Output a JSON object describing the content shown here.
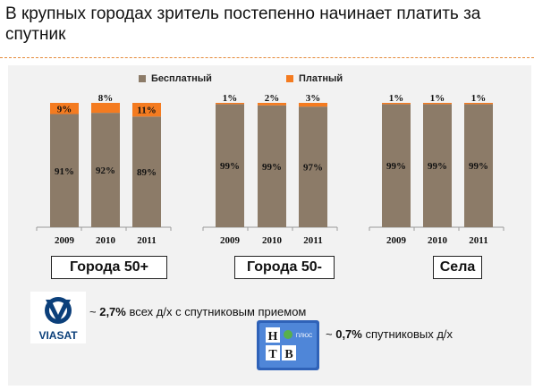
{
  "title": "В крупных городах зритель постепенно начинает платить за спутник",
  "colors": {
    "free": "#8c7b68",
    "paid": "#f47b20",
    "rule": "#e58a3a",
    "panel": "#f2f2f2"
  },
  "legend": {
    "free": "Бесплатный",
    "paid": "Платный"
  },
  "chart_data": {
    "type": "bar",
    "stacked": true,
    "percent": true,
    "ylim": [
      0,
      100
    ],
    "groups": [
      {
        "name": "Города 50+",
        "years": [
          "2009",
          "2010",
          "2011"
        ],
        "free": [
          91,
          92,
          89
        ],
        "paid": [
          9,
          8,
          11
        ],
        "free_labels": [
          "91%",
          "92%",
          "89%"
        ],
        "paid_labels": [
          "9%",
          "8%",
          "11%"
        ]
      },
      {
        "name": "Города 50-",
        "years": [
          "2009",
          "2010",
          "2011"
        ],
        "free": [
          99,
          99,
          97
        ],
        "paid": [
          1,
          2,
          3
        ],
        "free_labels": [
          "99%",
          "99%",
          "97%"
        ],
        "paid_labels": [
          "1%",
          "2%",
          "3%"
        ]
      },
      {
        "name": "Села",
        "years": [
          "2009",
          "2010",
          "2011"
        ],
        "free": [
          99,
          99,
          99
        ],
        "paid": [
          1,
          1,
          1
        ],
        "free_labels": [
          "99%",
          "99%",
          "99%"
        ],
        "paid_labels": [
          "1%",
          "1%",
          "1%"
        ]
      }
    ]
  },
  "notes": {
    "viasat": {
      "logo_text": "VIASAT",
      "prefix": "~ ",
      "value": "2,7%",
      "text": " всех д/х с спутниковым приемом"
    },
    "ntv": {
      "logo_letters": [
        "Н",
        "Т",
        "В"
      ],
      "logo_word": "ПЛЮС",
      "prefix": "~ ",
      "value": "0,7%",
      "text": " спутниковых д/х"
    }
  }
}
